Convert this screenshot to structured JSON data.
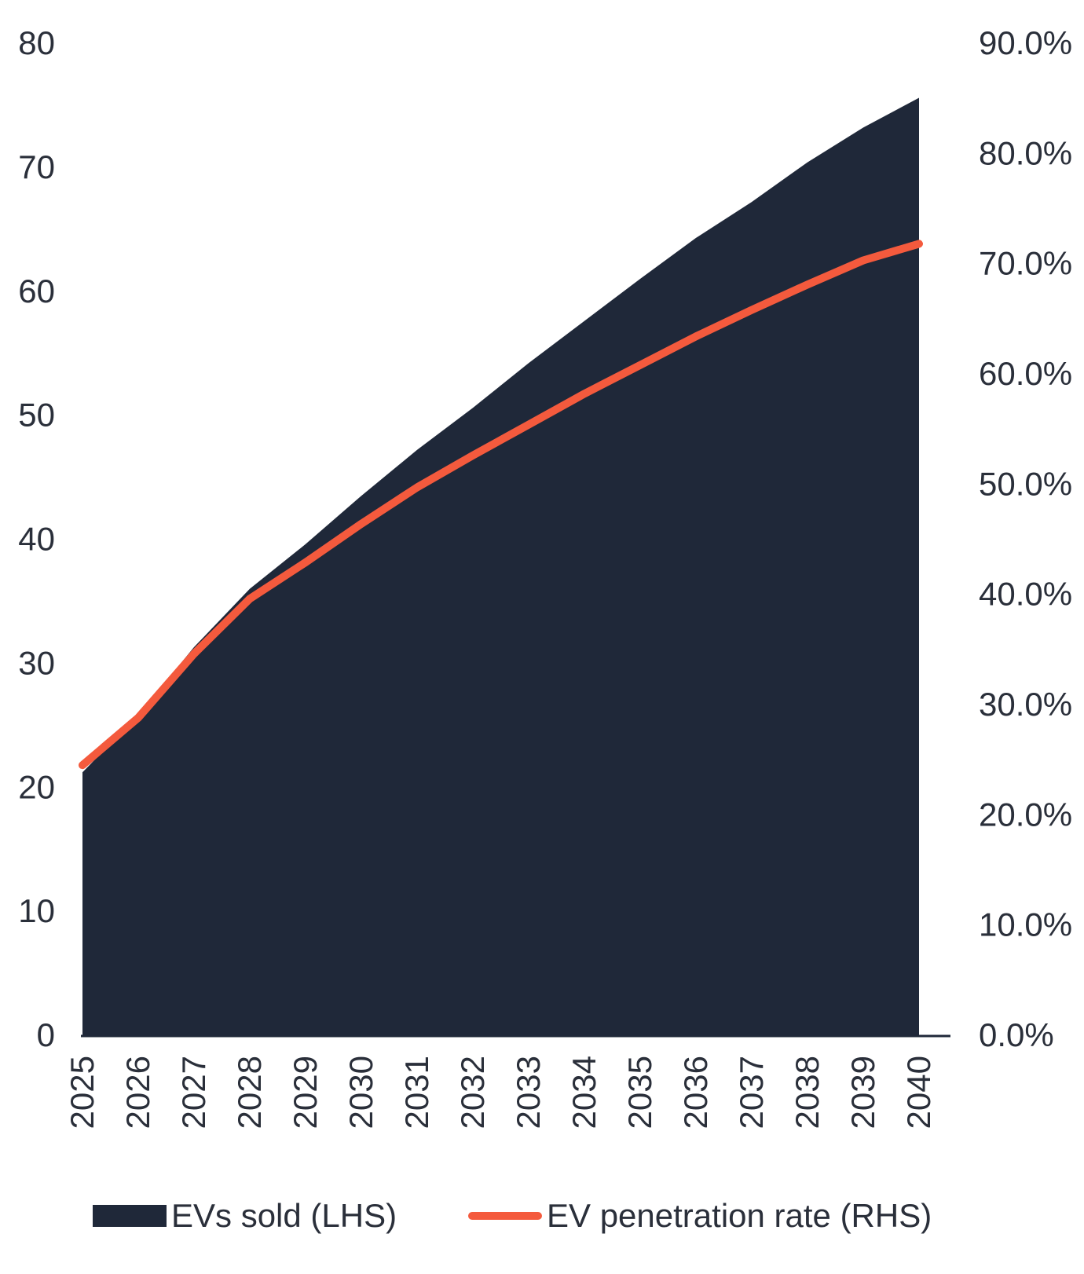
{
  "chart_data": {
    "type": "area",
    "categories": [
      "2025",
      "2026",
      "2027",
      "2028",
      "2029",
      "2030",
      "2031",
      "2032",
      "2033",
      "2034",
      "2035",
      "2036",
      "2037",
      "2038",
      "2039",
      "2040"
    ],
    "series": [
      {
        "name": "EVs sold (LHS)",
        "type": "area",
        "axis": "left",
        "color": "#1f2839",
        "values": [
          21.2,
          25.8,
          31.3,
          36.0,
          39.6,
          43.5,
          47.2,
          50.6,
          54.2,
          57.6,
          61.0,
          64.3,
          67.2,
          70.4,
          73.2,
          75.6
        ]
      },
      {
        "name": "EV penetration rate (RHS)",
        "type": "line",
        "axis": "right",
        "color": "#f45a3d",
        "values": [
          24.5,
          28.8,
          34.6,
          39.6,
          42.9,
          46.4,
          49.7,
          52.6,
          55.4,
          58.2,
          60.8,
          63.4,
          65.8,
          68.1,
          70.3,
          71.8
        ]
      }
    ],
    "y_left": {
      "ylim": [
        0,
        80
      ],
      "ticks": [
        0,
        10,
        20,
        30,
        40,
        50,
        60,
        70,
        80
      ],
      "tick_labels": [
        "0",
        "10",
        "20",
        "30",
        "40",
        "50",
        "60",
        "70",
        "80"
      ]
    },
    "y_right": {
      "ylim": [
        0,
        90
      ],
      "ticks": [
        0,
        10,
        20,
        30,
        40,
        50,
        60,
        70,
        80,
        90
      ],
      "tick_labels": [
        "0.0%",
        "10.0%",
        "20.0%",
        "30.0%",
        "40.0%",
        "50.0%",
        "60.0%",
        "70.0%",
        "80.0%",
        "90.0%"
      ]
    },
    "title": "",
    "xlabel": "",
    "ylabel": "",
    "grid": false,
    "legend": "bottom"
  }
}
